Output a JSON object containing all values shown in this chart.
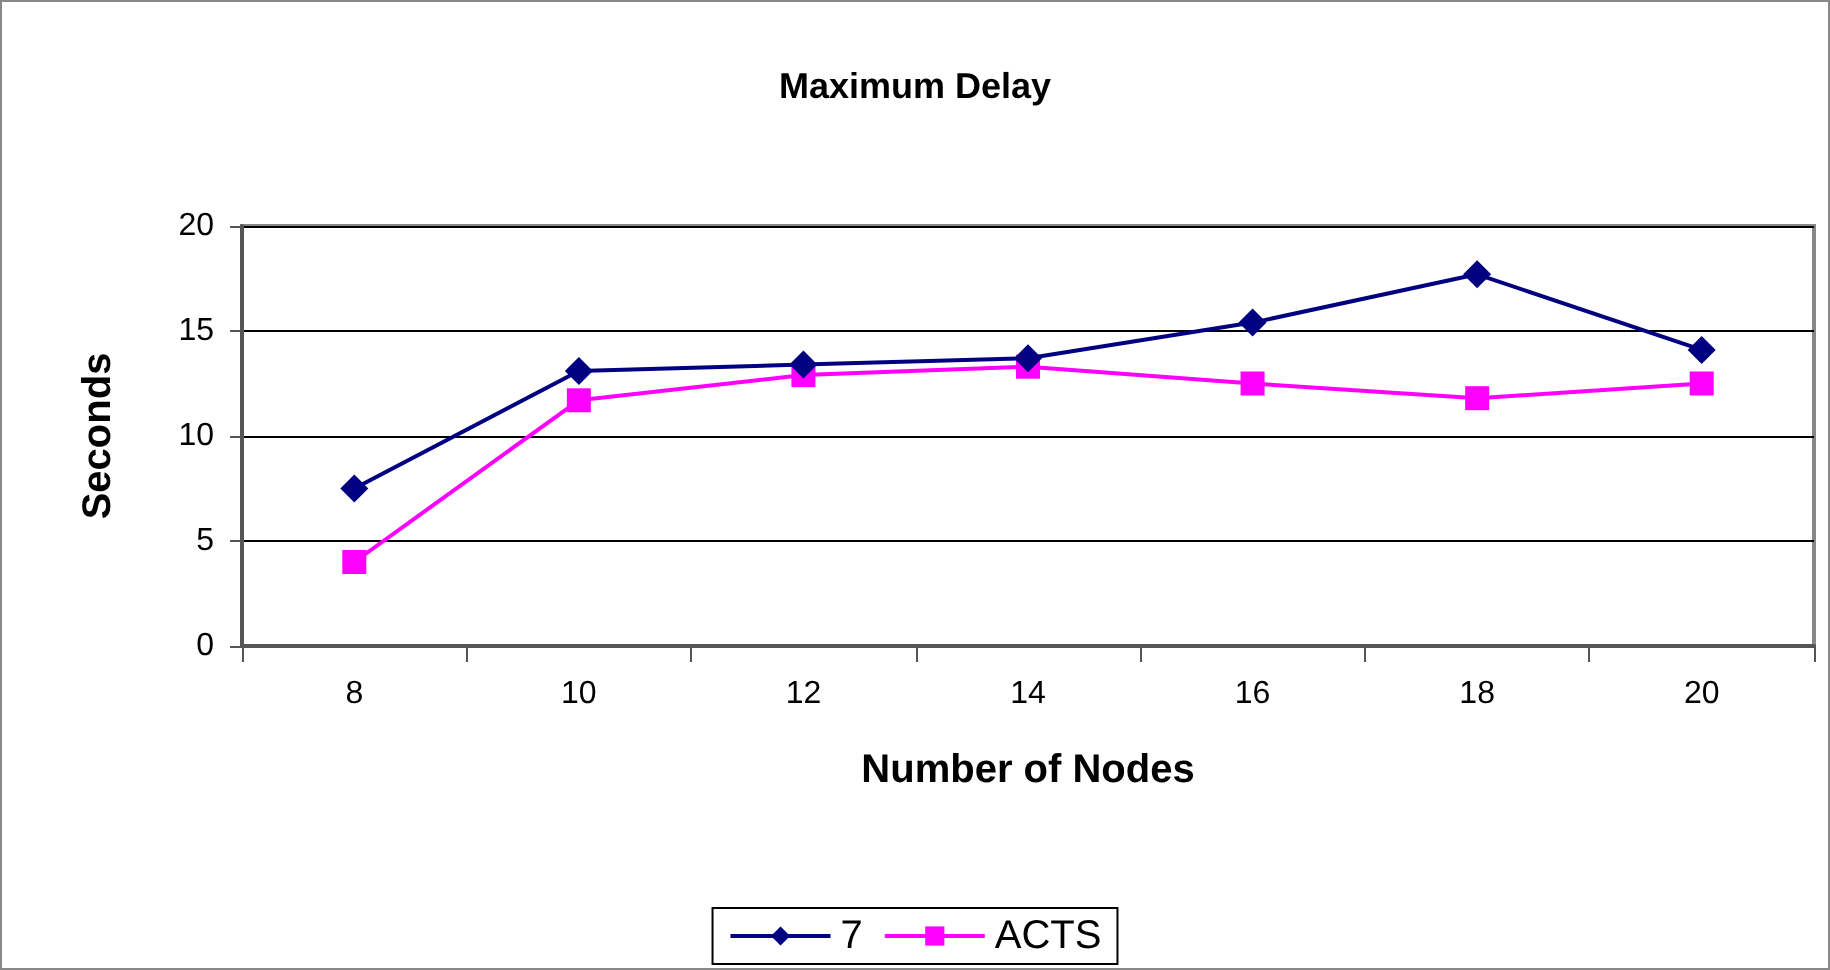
{
  "chart_data": {
    "type": "line",
    "title": "Maximum Delay",
    "xlabel": "Number of Nodes",
    "ylabel": "Seconds",
    "categories": [
      "8",
      "10",
      "12",
      "14",
      "16",
      "18",
      "20"
    ],
    "series": [
      {
        "name": "7",
        "color": "#000080",
        "marker": "diamond",
        "values": [
          7.5,
          13.1,
          13.4,
          13.7,
          15.4,
          17.7,
          14.1
        ]
      },
      {
        "name": "ACTS",
        "color": "#ff00ff",
        "marker": "square",
        "values": [
          4.0,
          11.7,
          12.9,
          13.3,
          12.5,
          11.8,
          12.5
        ]
      }
    ],
    "ylim": [
      0,
      20
    ],
    "yticks": [
      0,
      5,
      10,
      15,
      20
    ],
    "grid": "y",
    "legend": "bottom",
    "line_style": "solid"
  }
}
